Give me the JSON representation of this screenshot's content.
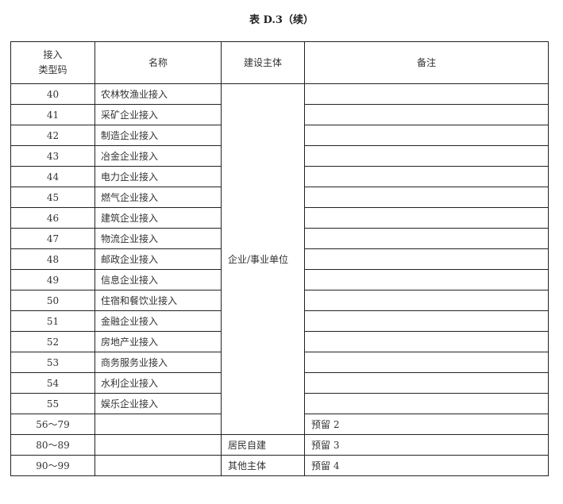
{
  "title": "表 D.3（续）",
  "headers": {
    "code_line1": "接入",
    "code_line2": "类型码",
    "name": "名称",
    "builder": "建设主体",
    "note": "备注"
  },
  "rows": [
    {
      "code": "40",
      "name": "农林牧渔业接入",
      "note": ""
    },
    {
      "code": "41",
      "name": "采矿企业接入",
      "note": ""
    },
    {
      "code": "42",
      "name": "制造企业接入",
      "note": ""
    },
    {
      "code": "43",
      "name": "冶金企业接入",
      "note": ""
    },
    {
      "code": "44",
      "name": "电力企业接入",
      "note": ""
    },
    {
      "code": "45",
      "name": "燃气企业接入",
      "note": ""
    },
    {
      "code": "46",
      "name": "建筑企业接入",
      "note": ""
    },
    {
      "code": "47",
      "name": "物流企业接入",
      "note": ""
    },
    {
      "code": "48",
      "name": "邮政企业接入",
      "note": ""
    },
    {
      "code": "49",
      "name": "信息企业接入",
      "note": ""
    },
    {
      "code": "50",
      "name": "住宿和餐饮业接入",
      "note": ""
    },
    {
      "code": "51",
      "name": "金融企业接入",
      "note": ""
    },
    {
      "code": "52",
      "name": "房地产业接入",
      "note": ""
    },
    {
      "code": "53",
      "name": "商务服务业接入",
      "note": ""
    },
    {
      "code": "54",
      "name": "水利企业接入",
      "note": ""
    },
    {
      "code": "55",
      "name": "娱乐企业接入",
      "note": ""
    },
    {
      "code": "56～79",
      "name": "",
      "note": "预留 2"
    },
    {
      "code": "80～89",
      "name": "",
      "builder": "居民自建",
      "note": "预留 3"
    },
    {
      "code": "90～99",
      "name": "",
      "builder": "其他主体",
      "note": "预留 4"
    }
  ],
  "merged_builder": "企业/事业单位"
}
